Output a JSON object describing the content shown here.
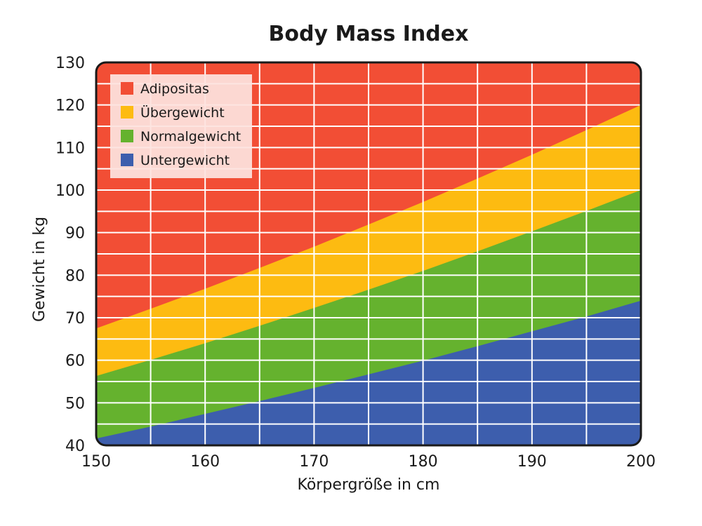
{
  "chart_data": {
    "type": "area",
    "title": "Body Mass Index",
    "xlabel": "Körpergröße in cm",
    "ylabel": "Gewicht in kg",
    "xlim": [
      150,
      200
    ],
    "ylim": [
      40,
      130
    ],
    "x_ticks": [
      150,
      160,
      170,
      180,
      190,
      200
    ],
    "y_ticks": [
      40,
      50,
      60,
      70,
      80,
      90,
      100,
      110,
      120,
      130
    ],
    "grid": true,
    "legend_position": "top-left",
    "x": [
      150,
      155,
      160,
      165,
      170,
      175,
      180,
      185,
      190,
      195,
      200
    ],
    "boundaries_kg": {
      "untergewicht_top": [
        41.6,
        44.4,
        47.4,
        50.4,
        53.5,
        56.7,
        59.9,
        63.3,
        66.8,
        70.3,
        74.0
      ],
      "normalgewicht_top": [
        56.3,
        60.1,
        64.0,
        68.1,
        72.3,
        76.6,
        81.0,
        85.6,
        90.3,
        95.1,
        100.0
      ],
      "uebergewicht_top": [
        67.5,
        72.1,
        76.8,
        81.7,
        86.7,
        91.9,
        97.2,
        102.7,
        108.3,
        114.1,
        120.0
      ]
    },
    "series": [
      {
        "name": "Adipositas",
        "color": "#f24e35"
      },
      {
        "name": "Übergewicht",
        "color": "#fdbb11"
      },
      {
        "name": "Normalgewicht",
        "color": "#65b22e"
      },
      {
        "name": "Untergewicht",
        "color": "#3d5ead"
      }
    ]
  }
}
